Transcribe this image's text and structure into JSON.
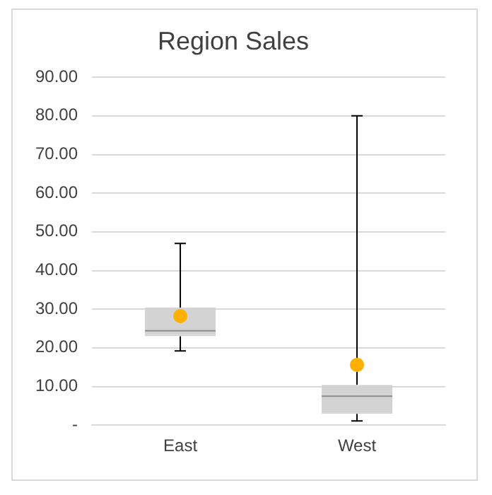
{
  "chart_data": {
    "type": "box",
    "title": "Region Sales",
    "categories": [
      "East",
      "West"
    ],
    "series": [
      {
        "type": "box",
        "color": "#d3d3d3",
        "boxes": [
          {
            "low": 19.2,
            "q1": 23,
            "median": 24.4,
            "q3": 30.4,
            "high": 47
          },
          {
            "low": 1.1,
            "q1": 2.9,
            "median": 7.5,
            "q3": 10.4,
            "high": 80
          }
        ]
      },
      {
        "type": "scatter",
        "color": "#ffb000",
        "x": [
          "East",
          "West"
        ],
        "values": [
          28.2,
          15.6
        ],
        "marker": "circle"
      }
    ],
    "ylim": [
      0,
      90
    ],
    "yticks": [
      {
        "value": 0,
        "label": "-"
      },
      {
        "value": 10,
        "label": "10.00"
      },
      {
        "value": 20,
        "label": "20.00"
      },
      {
        "value": 30,
        "label": "30.00"
      },
      {
        "value": 40,
        "label": "40.00"
      },
      {
        "value": 50,
        "label": "50.00"
      },
      {
        "value": 60,
        "label": "60.00"
      },
      {
        "value": 70,
        "label": "70.00"
      },
      {
        "value": 80,
        "label": "80.00"
      },
      {
        "value": 90,
        "label": "90.00"
      }
    ],
    "grid": "y",
    "legend": false
  }
}
